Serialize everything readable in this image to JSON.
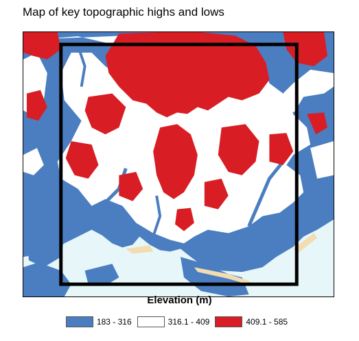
{
  "title": "Map of key topographic highs and lows",
  "legend": {
    "title": "Elevation (m)",
    "items": [
      {
        "label": "183 - 316",
        "color": "#4a7ec0"
      },
      {
        "label": "316.1 - 409",
        "color": "#ffffff"
      },
      {
        "label": "409.1 - 585",
        "color": "#d81e24"
      }
    ]
  },
  "map": {
    "water_color": "#e6f6f9",
    "beach_color": "#f2dcb0",
    "study_area_box": "black rectangle outline"
  }
}
